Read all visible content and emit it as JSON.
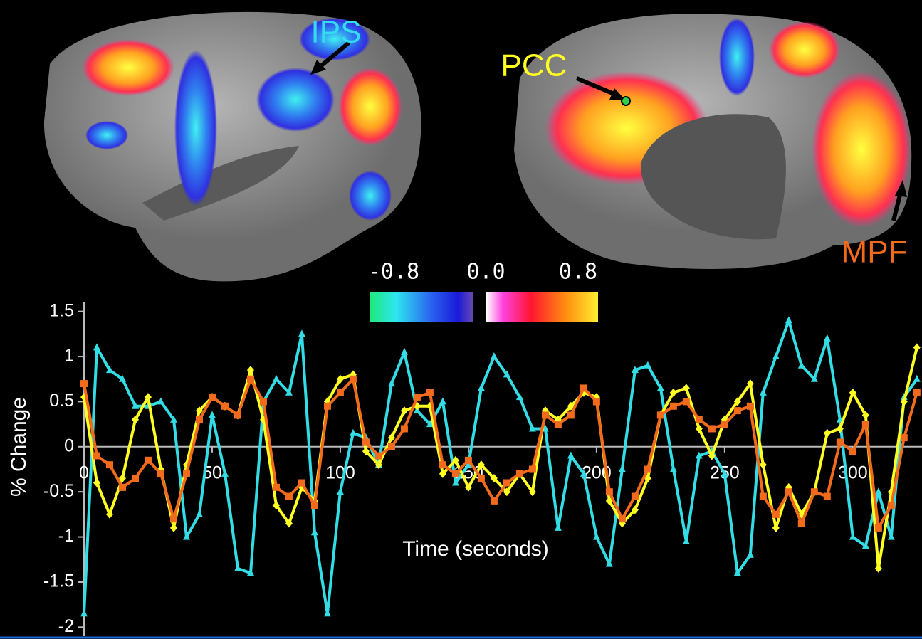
{
  "chart_data": {
    "type": "line",
    "x_label": "Time (seconds)",
    "y_label": "% Change",
    "x": [
      0,
      5,
      10,
      15,
      20,
      25,
      30,
      35,
      40,
      45,
      50,
      55,
      60,
      65,
      70,
      75,
      80,
      85,
      90,
      95,
      100,
      105,
      110,
      115,
      120,
      125,
      130,
      135,
      140,
      145,
      150,
      155,
      160,
      165,
      170,
      175,
      180,
      185,
      190,
      195,
      200,
      205,
      210,
      215,
      220,
      225,
      230,
      235,
      240,
      245,
      250,
      255,
      260,
      265,
      270,
      275,
      280,
      285,
      290,
      295,
      300,
      305,
      310,
      315,
      320,
      325
    ],
    "series": [
      {
        "name": "IPS",
        "color": "#33dde6",
        "marker": "triangle",
        "values": [
          -1.85,
          1.1,
          0.85,
          0.75,
          0.45,
          0.45,
          0.5,
          0.3,
          -1.0,
          -0.75,
          0.35,
          -0.3,
          -1.35,
          -1.4,
          0.5,
          0.75,
          0.6,
          1.25,
          -0.95,
          -1.85,
          -0.5,
          0.15,
          0.1,
          -0.2,
          0.7,
          1.05,
          0.4,
          0.25,
          0.5,
          -0.4,
          -0.2,
          0.65,
          1.0,
          0.8,
          0.55,
          0.2,
          0.2,
          -0.9,
          -0.1,
          -0.3,
          -1.0,
          -1.3,
          -0.25,
          0.85,
          0.9,
          0.65,
          -0.25,
          -1.05,
          -0.1,
          -0.05,
          -0.3,
          -1.4,
          -1.2,
          0.6,
          1.0,
          1.4,
          0.9,
          0.75,
          1.2,
          0.3,
          -1.0,
          -1.1,
          -0.5,
          -1.0,
          0.55,
          0.75
        ]
      },
      {
        "name": "PCC",
        "color": "#ffff22",
        "marker": "diamond",
        "values": [
          0.55,
          -0.4,
          -0.75,
          -0.35,
          0.3,
          0.55,
          -0.25,
          -0.9,
          -0.2,
          0.4,
          0.55,
          0.45,
          0.35,
          0.85,
          0.3,
          -0.65,
          -0.85,
          -0.45,
          -0.6,
          0.5,
          0.75,
          0.8,
          -0.05,
          -0.2,
          0.1,
          0.4,
          0.45,
          0.45,
          -0.3,
          -0.15,
          -0.45,
          -0.2,
          -0.35,
          -0.5,
          -0.3,
          -0.5,
          0.4,
          0.3,
          0.45,
          0.6,
          0.55,
          -0.6,
          -0.85,
          -0.7,
          -0.35,
          0.35,
          0.6,
          0.65,
          0.2,
          -0.1,
          0.3,
          0.5,
          0.7,
          -0.2,
          -0.9,
          -0.45,
          -0.75,
          -0.5,
          0.15,
          0.2,
          0.6,
          0.35,
          -1.35,
          -0.5,
          0.5,
          1.1
        ]
      },
      {
        "name": "MPF",
        "color": "#f26a1b",
        "marker": "square",
        "values": [
          0.7,
          -0.1,
          -0.2,
          -0.45,
          -0.35,
          -0.15,
          -0.3,
          -0.8,
          -0.3,
          0.3,
          0.55,
          0.45,
          0.35,
          0.75,
          0.5,
          -0.45,
          -0.55,
          -0.4,
          -0.65,
          0.45,
          0.6,
          0.75,
          0.05,
          -0.1,
          0.0,
          0.2,
          0.55,
          0.6,
          -0.2,
          -0.3,
          -0.15,
          -0.35,
          -0.6,
          -0.4,
          -0.3,
          -0.25,
          0.35,
          0.25,
          0.35,
          0.65,
          0.5,
          -0.5,
          -0.8,
          -0.55,
          -0.25,
          0.35,
          0.45,
          0.5,
          0.3,
          0.2,
          0.25,
          0.4,
          0.45,
          -0.55,
          -0.75,
          -0.5,
          -0.85,
          -0.5,
          -0.55,
          0.05,
          -0.05,
          0.25,
          -0.9,
          -0.65,
          0.1,
          0.6
        ]
      }
    ],
    "xlim": [
      0,
      327
    ],
    "ylim": [
      -2.1,
      1.6
    ],
    "xticks": [
      0,
      50,
      100,
      150,
      200,
      250,
      300
    ],
    "yticks": [
      1.5,
      1,
      0.5,
      0,
      -0.5,
      -1,
      -1.5,
      -2
    ],
    "colorbar": {
      "lim": [
        -0.8,
        0.8
      ],
      "ticks": [
        {
          "value": -0.8,
          "label": "-0.8"
        },
        {
          "value": 0,
          "label": "0.0"
        },
        {
          "value": 0.8,
          "label": "0.8"
        }
      ]
    }
  }
}
